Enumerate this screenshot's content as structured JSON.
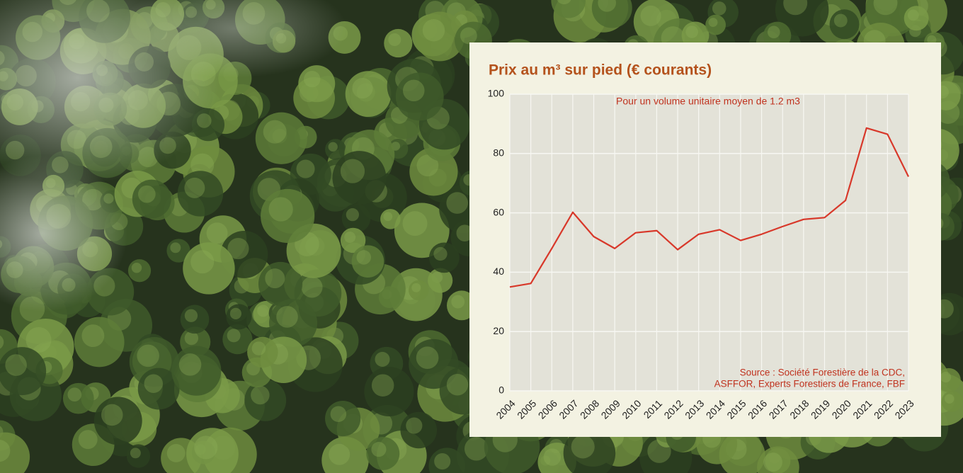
{
  "chart_data": {
    "type": "line",
    "title": "Prix au m³ sur pied (€ courants)",
    "subtitle": "Pour un volume unitaire moyen de 1.2 m3",
    "source": [
      "Source : Société Forestière de la CDC,",
      "ASFFOR, Experts Forestiers de France, FBF"
    ],
    "categories": [
      "2004",
      "2005",
      "2006",
      "2007",
      "2008",
      "2009",
      "2010",
      "2011",
      "2012",
      "2013",
      "2014",
      "2015",
      "2016",
      "2017",
      "2018",
      "2019",
      "2020",
      "2021",
      "2022",
      "2023"
    ],
    "values": [
      35,
      36.2,
      48,
      60.2,
      52,
      48,
      53.3,
      54,
      47.6,
      52.8,
      54.3,
      50.7,
      52.8,
      55.4,
      57.8,
      58.4,
      64.2,
      88.6,
      86.5,
      72.2
    ],
    "color": "#d8382a",
    "ylim": [
      0,
      100
    ],
    "yticks": [
      0,
      20,
      40,
      60,
      80,
      100
    ],
    "grid": true
  }
}
